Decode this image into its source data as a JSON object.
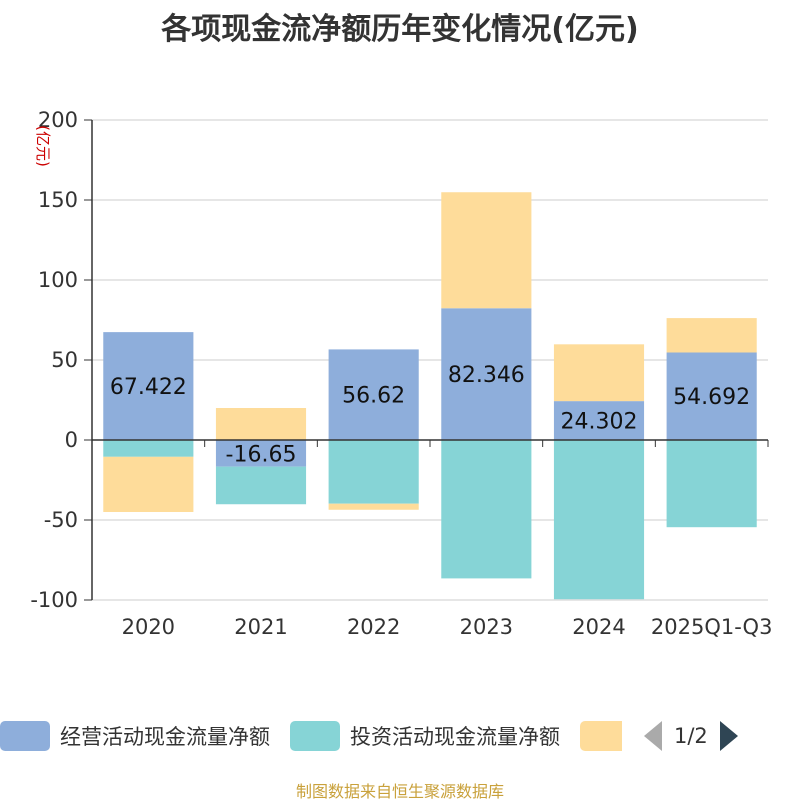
{
  "chart_data": {
    "type": "bar",
    "stacked": true,
    "title": "各项现金流净额历年变化情况(亿元)",
    "ylabel": "(亿元)",
    "ylim": [
      -100,
      200
    ],
    "yticks": [
      200,
      150,
      100,
      50,
      0,
      -50,
      -100
    ],
    "grid": true,
    "categories": [
      "2020",
      "2021",
      "2022",
      "2023",
      "2024",
      "2025Q1-Q3"
    ],
    "series": [
      {
        "name": "经营活动现金流量净额",
        "color": "#8eaedb",
        "values": [
          67.422,
          -16.65,
          56.62,
          82.346,
          24.302,
          54.692
        ],
        "labels": [
          "67.422",
          "-16.65",
          "56.62",
          "82.346",
          "24.302",
          "54.692"
        ]
      },
      {
        "name": "投资活动现金流量净额",
        "color": "#86d4d6",
        "values": [
          -10.5,
          -23.5,
          -39.8,
          -86.5,
          -99.5,
          -54.5
        ]
      },
      {
        "name": "",
        "color": "#fedc9a",
        "values": [
          -34.5,
          20,
          -3.8,
          72.5,
          35.5,
          21.5
        ]
      }
    ],
    "legend_position": "bottom",
    "legend_page": "1/2"
  },
  "source": "制图数据来自恒生聚源数据库"
}
